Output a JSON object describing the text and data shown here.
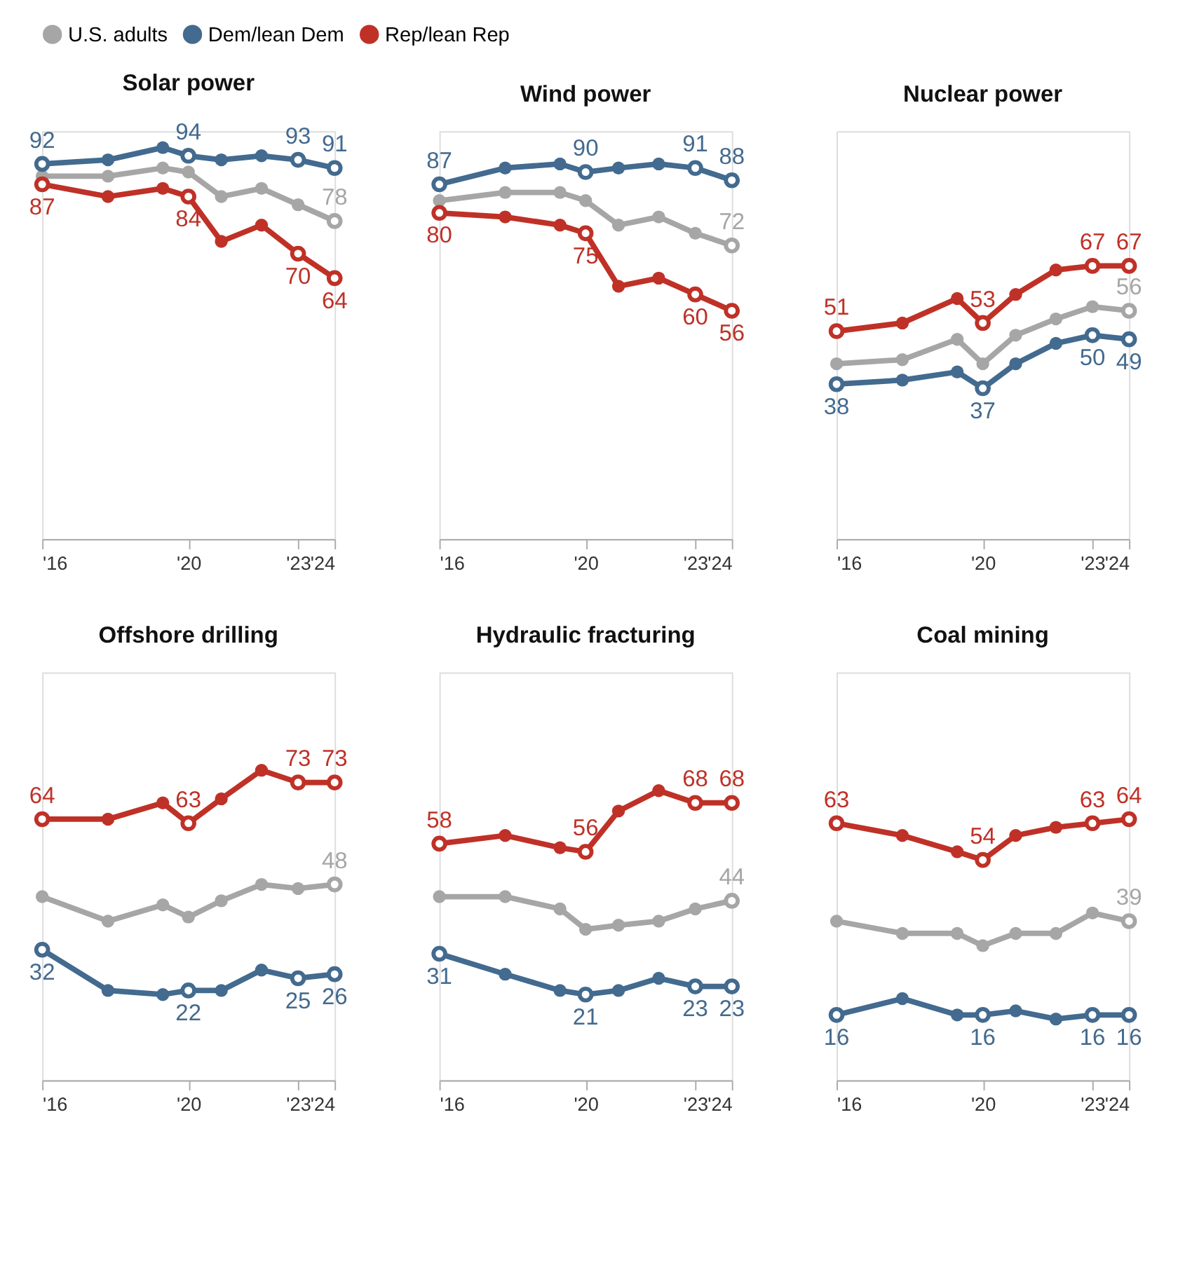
{
  "chart_data": [
    {
      "type": "line",
      "title": "Solar power",
      "x": [
        2016,
        2017.8,
        2019.3,
        2020,
        2020.9,
        2022,
        2023,
        2024
      ],
      "xlim": [
        2016,
        2024
      ],
      "xticks": [
        {
          "value": 2016,
          "label": "'16"
        },
        {
          "value": 2020,
          "label": "'20"
        },
        {
          "value": 2023,
          "label": "'23"
        },
        {
          "value": 2024,
          "label": "'24"
        }
      ],
      "ylim": [
        0,
        100
      ],
      "tick_labels": "x",
      "grid": false,
      "marker": "circle",
      "legend": "top",
      "series": [
        {
          "name": "U.S. adults",
          "color": "#a6a6a6",
          "values": [
            89,
            89,
            91,
            90,
            84,
            86,
            82,
            78
          ],
          "value_labels": [
            null,
            null,
            null,
            null,
            null,
            null,
            null,
            "78"
          ]
        },
        {
          "name": "Dem/lean Dem",
          "color": "#436a8f",
          "values": [
            92,
            93,
            96,
            94,
            93,
            94,
            93,
            91
          ],
          "value_labels": [
            "92",
            null,
            null,
            "94",
            null,
            null,
            "93",
            "91"
          ]
        },
        {
          "name": "Rep/lean Rep",
          "color": "#bf3127",
          "values": [
            87,
            84,
            86,
            84,
            73,
            77,
            70,
            64
          ],
          "value_labels": [
            "87",
            null,
            null,
            "84",
            null,
            null,
            "70",
            "64"
          ]
        }
      ]
    },
    {
      "type": "line",
      "title": "Wind power",
      "x": [
        2016,
        2017.8,
        2019.3,
        2020,
        2020.9,
        2022,
        2023,
        2024
      ],
      "xlim": [
        2016,
        2024
      ],
      "xticks": [
        {
          "value": 2016,
          "label": "'16"
        },
        {
          "value": 2020,
          "label": "'20"
        },
        {
          "value": 2023,
          "label": "'23"
        },
        {
          "value": 2024,
          "label": "'24"
        }
      ],
      "ylim": [
        0,
        100
      ],
      "tick_labels": "x",
      "grid": false,
      "marker": "circle",
      "series": [
        {
          "name": "U.S. adults",
          "color": "#a6a6a6",
          "values": [
            83,
            85,
            85,
            83,
            77,
            79,
            75,
            72
          ],
          "value_labels": [
            null,
            null,
            null,
            null,
            null,
            null,
            null,
            "72"
          ]
        },
        {
          "name": "Dem/lean Dem",
          "color": "#436a8f",
          "values": [
            87,
            91,
            92,
            90,
            91,
            92,
            91,
            88
          ],
          "value_labels": [
            "87",
            null,
            null,
            "90",
            null,
            null,
            "91",
            "88"
          ]
        },
        {
          "name": "Rep/lean Rep",
          "color": "#bf3127",
          "values": [
            80,
            79,
            77,
            75,
            62,
            64,
            60,
            56
          ],
          "value_labels": [
            "80",
            null,
            null,
            "75",
            null,
            null,
            "60",
            "56"
          ]
        }
      ]
    },
    {
      "type": "line",
      "title": "Nuclear power",
      "x": [
        2016,
        2017.8,
        2019.3,
        2020,
        2020.9,
        2022,
        2023,
        2024
      ],
      "xlim": [
        2016,
        2024
      ],
      "xticks": [
        {
          "value": 2016,
          "label": "'16"
        },
        {
          "value": 2020,
          "label": "'20"
        },
        {
          "value": 2023,
          "label": "'23"
        },
        {
          "value": 2024,
          "label": "'24"
        }
      ],
      "ylim": [
        0,
        100
      ],
      "tick_labels": "x",
      "grid": false,
      "marker": "circle",
      "series": [
        {
          "name": "U.S. adults",
          "color": "#a6a6a6",
          "values": [
            43,
            44,
            49,
            43,
            50,
            54,
            57,
            56
          ],
          "value_labels": [
            null,
            null,
            null,
            null,
            null,
            null,
            null,
            "56"
          ]
        },
        {
          "name": "Dem/lean Dem",
          "color": "#436a8f",
          "values": [
            38,
            39,
            41,
            37,
            43,
            48,
            50,
            49
          ],
          "value_labels": [
            "38",
            null,
            null,
            "37",
            null,
            null,
            "50",
            "49"
          ]
        },
        {
          "name": "Rep/lean Rep",
          "color": "#bf3127",
          "values": [
            51,
            53,
            59,
            53,
            60,
            66,
            67,
            67
          ],
          "value_labels": [
            "51",
            null,
            null,
            "53",
            null,
            null,
            "67",
            "67"
          ]
        }
      ]
    },
    {
      "type": "line",
      "title": "Offshore drilling",
      "x": [
        2016,
        2017.8,
        2019.3,
        2020,
        2020.9,
        2022,
        2023,
        2024
      ],
      "xlim": [
        2016,
        2024
      ],
      "xticks": [
        {
          "value": 2016,
          "label": "'16"
        },
        {
          "value": 2020,
          "label": "'20"
        },
        {
          "value": 2023,
          "label": "'23"
        },
        {
          "value": 2024,
          "label": "'24"
        }
      ],
      "ylim": [
        0,
        100
      ],
      "tick_labels": "x",
      "grid": false,
      "marker": "circle",
      "series": [
        {
          "name": "U.S. adults",
          "color": "#a6a6a6",
          "values": [
            45,
            39,
            43,
            40,
            44,
            48,
            47,
            48
          ],
          "value_labels": [
            null,
            null,
            null,
            null,
            null,
            null,
            null,
            "48"
          ]
        },
        {
          "name": "Dem/lean Dem",
          "color": "#436a8f",
          "values": [
            32,
            22,
            21,
            22,
            22,
            27,
            25,
            26
          ],
          "value_labels": [
            "32",
            null,
            null,
            "22",
            null,
            null,
            "25",
            "26"
          ]
        },
        {
          "name": "Rep/lean Rep",
          "color": "#bf3127",
          "values": [
            64,
            64,
            68,
            63,
            69,
            76,
            73,
            73
          ],
          "value_labels": [
            "64",
            null,
            null,
            "63",
            null,
            null,
            "73",
            "73"
          ]
        }
      ]
    },
    {
      "type": "line",
      "title": "Hydraulic fracturing",
      "x": [
        2016,
        2017.8,
        2019.3,
        2020,
        2020.9,
        2022,
        2023,
        2024
      ],
      "xlim": [
        2016,
        2024
      ],
      "xticks": [
        {
          "value": 2016,
          "label": "'16"
        },
        {
          "value": 2020,
          "label": "'20"
        },
        {
          "value": 2023,
          "label": "'23"
        },
        {
          "value": 2024,
          "label": "'24"
        }
      ],
      "ylim": [
        0,
        100
      ],
      "tick_labels": "x",
      "grid": false,
      "marker": "circle",
      "series": [
        {
          "name": "U.S. adults",
          "color": "#a6a6a6",
          "values": [
            45,
            45,
            42,
            37,
            38,
            39,
            42,
            44
          ],
          "value_labels": [
            null,
            null,
            null,
            null,
            null,
            null,
            null,
            "44"
          ]
        },
        {
          "name": "Dem/lean Dem",
          "color": "#436a8f",
          "values": [
            31,
            26,
            22,
            21,
            22,
            25,
            23,
            23
          ],
          "value_labels": [
            "31",
            null,
            null,
            "21",
            null,
            null,
            "23",
            "23"
          ]
        },
        {
          "name": "Rep/lean Rep",
          "color": "#bf3127",
          "values": [
            58,
            60,
            57,
            56,
            66,
            71,
            68,
            68
          ],
          "value_labels": [
            "58",
            null,
            null,
            "56",
            null,
            null,
            "68",
            "68"
          ]
        }
      ]
    },
    {
      "type": "line",
      "title": "Coal mining",
      "x": [
        2016,
        2017.8,
        2019.3,
        2020,
        2020.9,
        2022,
        2023,
        2024
      ],
      "xlim": [
        2016,
        2024
      ],
      "xticks": [
        {
          "value": 2016,
          "label": "'16"
        },
        {
          "value": 2020,
          "label": "'20"
        },
        {
          "value": 2023,
          "label": "'23"
        },
        {
          "value": 2024,
          "label": "'24"
        }
      ],
      "ylim": [
        0,
        100
      ],
      "tick_labels": "x",
      "grid": false,
      "marker": "circle",
      "series": [
        {
          "name": "U.S. adults",
          "color": "#a6a6a6",
          "values": [
            39,
            36,
            36,
            33,
            36,
            36,
            41,
            39
          ],
          "value_labels": [
            null,
            null,
            null,
            null,
            null,
            null,
            null,
            "39"
          ]
        },
        {
          "name": "Dem/lean Dem",
          "color": "#436a8f",
          "values": [
            16,
            20,
            16,
            16,
            17,
            15,
            16,
            16
          ],
          "value_labels": [
            "16",
            null,
            null,
            "16",
            null,
            null,
            "16",
            "16"
          ]
        },
        {
          "name": "Rep/lean Rep",
          "color": "#bf3127",
          "values": [
            63,
            60,
            56,
            54,
            60,
            62,
            63,
            64
          ],
          "value_labels": [
            "63",
            null,
            null,
            "54",
            null,
            null,
            "63",
            "64"
          ]
        }
      ]
    }
  ]
}
